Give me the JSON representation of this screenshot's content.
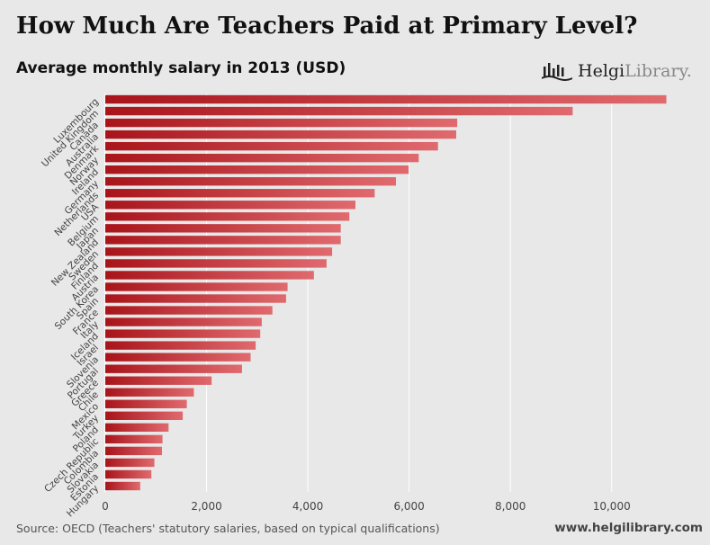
{
  "header": {
    "title": "How Much Are Teachers Paid at Primary Level?",
    "subtitle": "Average monthly salary in 2013 (USD)"
  },
  "logo": {
    "name_part1": "Helgi",
    "name_part2": "Library."
  },
  "footer": {
    "source": "Source: OECD (Teachers' statutory salaries, based on typical qualifications)",
    "website": "www.helgilibrary.com"
  },
  "colors": {
    "bar_dark": "#a8141a",
    "bar_light": "#e06a6e",
    "background": "#e8e8e8",
    "grid": "#ffffff"
  },
  "chart_data": {
    "type": "bar",
    "orientation": "horizontal",
    "title": "How Much Are Teachers Paid at Primary Level?",
    "subtitle": "Average monthly salary in 2013 (USD)",
    "xlabel": "",
    "ylabel": "",
    "xlim": [
      0,
      11200
    ],
    "xticks": [
      0,
      2000,
      4000,
      6000,
      8000,
      10000
    ],
    "xtick_labels": [
      "0",
      "2,000",
      "4,000",
      "6,000",
      "8,000",
      "10,000"
    ],
    "grid": true,
    "legend": "none",
    "categories": [
      "Luxembourg",
      "United Kingdom",
      "Canada",
      "Australia",
      "Denmark",
      "Norway",
      "Ireland",
      "Germany",
      "Netherlands",
      "USA",
      "Belgium",
      "Japan",
      "New Zealand",
      "Sweden",
      "Finland",
      "Austria",
      "South Korea",
      "Spain",
      "France",
      "Italy",
      "Iceland",
      "Israel",
      "Slovenia",
      "Portugal",
      "Greece",
      "Chile",
      "Mexico",
      "Turkey",
      "Poland",
      "Czech Republic",
      "Colombia",
      "Slovakia",
      "Estonia",
      "Hungary"
    ],
    "values": [
      11080,
      9230,
      6950,
      6930,
      6570,
      6190,
      5990,
      5740,
      5320,
      4940,
      4820,
      4650,
      4650,
      4480,
      4370,
      4120,
      3600,
      3570,
      3300,
      3090,
      3060,
      2970,
      2870,
      2700,
      2100,
      1750,
      1610,
      1530,
      1250,
      1130,
      1120,
      970,
      910,
      690
    ]
  }
}
